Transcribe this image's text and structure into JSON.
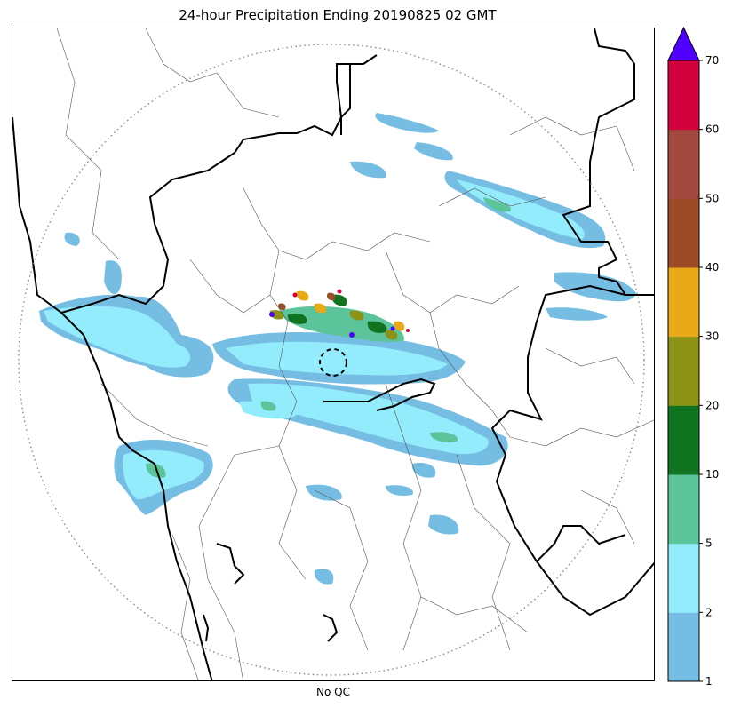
{
  "title": "24-hour Precipitation Ending 20190825 02 GMT",
  "footer_label": "No QC",
  "colorbar": {
    "ticks": [
      "1",
      "2",
      "5",
      "10",
      "20",
      "30",
      "40",
      "50",
      "60",
      "70"
    ],
    "colors": [
      "#75bde3",
      "#93ecfb",
      "#5cc49a",
      "#0f7320",
      "#8c9216",
      "#e9a918",
      "#9b4b27",
      "#a2493f",
      "#d2003d"
    ],
    "over_color": "#5000ff",
    "extend": "max"
  },
  "map": {
    "radar_range_ring": "dotted",
    "radar_site_marker": "dashed-circle",
    "border_color": "#000000",
    "district_line_color": "#555555",
    "range_ring_color": "#888888"
  }
}
